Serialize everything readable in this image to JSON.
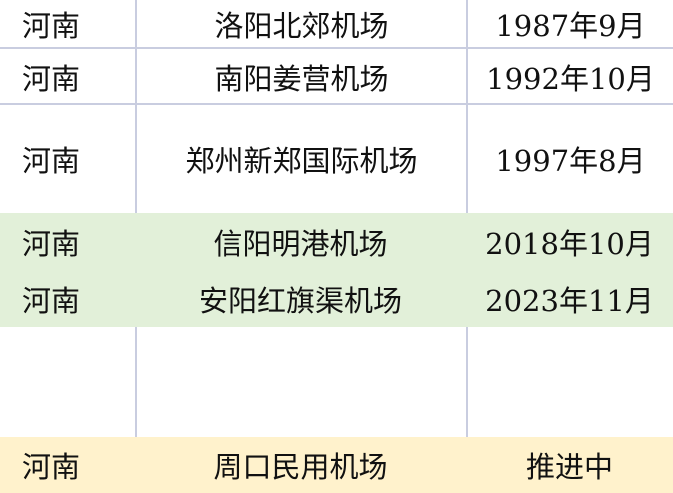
{
  "rows": [
    {
      "province": "河南",
      "airport": "洛阳北郊机场",
      "date": "1987年9月"
    },
    {
      "province": "河南",
      "airport": "南阳姜营机场",
      "date": "1992年10月"
    },
    {
      "province": "河南",
      "airport": "郑州新郑国际机场",
      "date": "1997年8月"
    },
    {
      "province": "河南",
      "airport": "信阳明港机场",
      "date": "2018年10月"
    },
    {
      "province": "河南",
      "airport": "安阳红旗渠机场",
      "date": "2023年11月"
    },
    {
      "province": "",
      "airport": "",
      "date": ""
    },
    {
      "province": "河南",
      "airport": "周口民用机场",
      "date": "推进中"
    }
  ],
  "colors": {
    "green_highlight": "#e2f0d9",
    "yellow_highlight": "#fff2cc",
    "grid": "#c9cde0"
  }
}
